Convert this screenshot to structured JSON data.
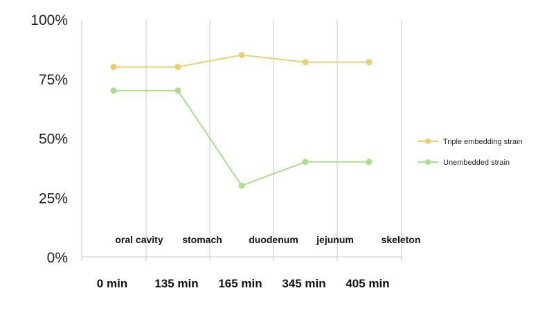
{
  "chart_data": {
    "type": "line",
    "title": "",
    "xlabel": "",
    "ylabel": "",
    "ylim": [
      0,
      100
    ],
    "y_ticks": [
      "0%",
      "25%",
      "50%",
      "75%",
      "100%"
    ],
    "y_tick_values": [
      0,
      25,
      50,
      75,
      100
    ],
    "categories": [
      "0 min",
      "135 min",
      "165 min",
      "345 min",
      "405 min"
    ],
    "stage_labels": [
      "oral cavity",
      "stomach",
      "duodenum",
      "jejunum",
      "skeleton"
    ],
    "grid": "vertical",
    "legend_position": "right",
    "series": [
      {
        "name": "Triple embedding strain",
        "color": "#f0cd6a",
        "values": [
          80,
          80,
          85,
          82,
          82
        ]
      },
      {
        "name": "Unembedded strain",
        "color": "#a8e08a",
        "values": [
          70,
          70,
          30,
          40,
          40
        ]
      }
    ]
  }
}
